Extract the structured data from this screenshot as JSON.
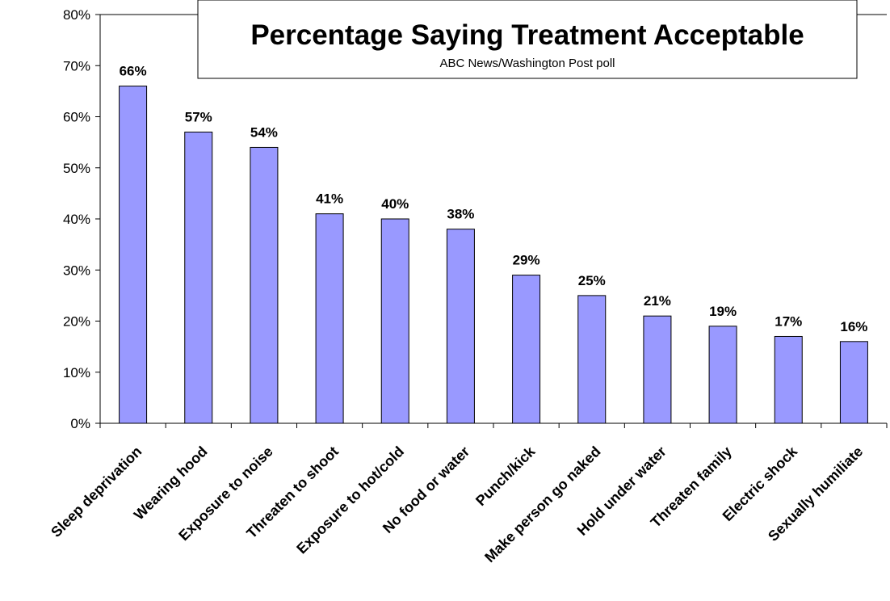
{
  "chart_data": {
    "type": "bar",
    "title": "Percentage Saying Treatment Acceptable",
    "subtitle": "ABC News/Washington Post poll",
    "xlabel": "",
    "ylabel": "",
    "ylim": [
      0,
      80
    ],
    "y_tick_labels": [
      "0%",
      "10%",
      "20%",
      "30%",
      "40%",
      "50%",
      "60%",
      "70%",
      "80%"
    ],
    "categories": [
      "Sleep deprivation",
      "Wearing hood",
      "Exposure to noise",
      "Threaten to shoot",
      "Exposure to hot/cold",
      "No food or water",
      "Punch/kick",
      "Make person go naked",
      "Hold under water",
      "Threaten family",
      "Electric shock",
      "Sexually humiliate"
    ],
    "values": [
      66,
      57,
      54,
      41,
      40,
      38,
      29,
      25,
      21,
      19,
      17,
      16
    ],
    "data_labels": [
      "66%",
      "57%",
      "54%",
      "41%",
      "40%",
      "38%",
      "29%",
      "25%",
      "21%",
      "19%",
      "17%",
      "16%"
    ],
    "grid": false,
    "legend": "none",
    "bar_color": "#9999ff",
    "bar_outline_color": "#000000"
  }
}
